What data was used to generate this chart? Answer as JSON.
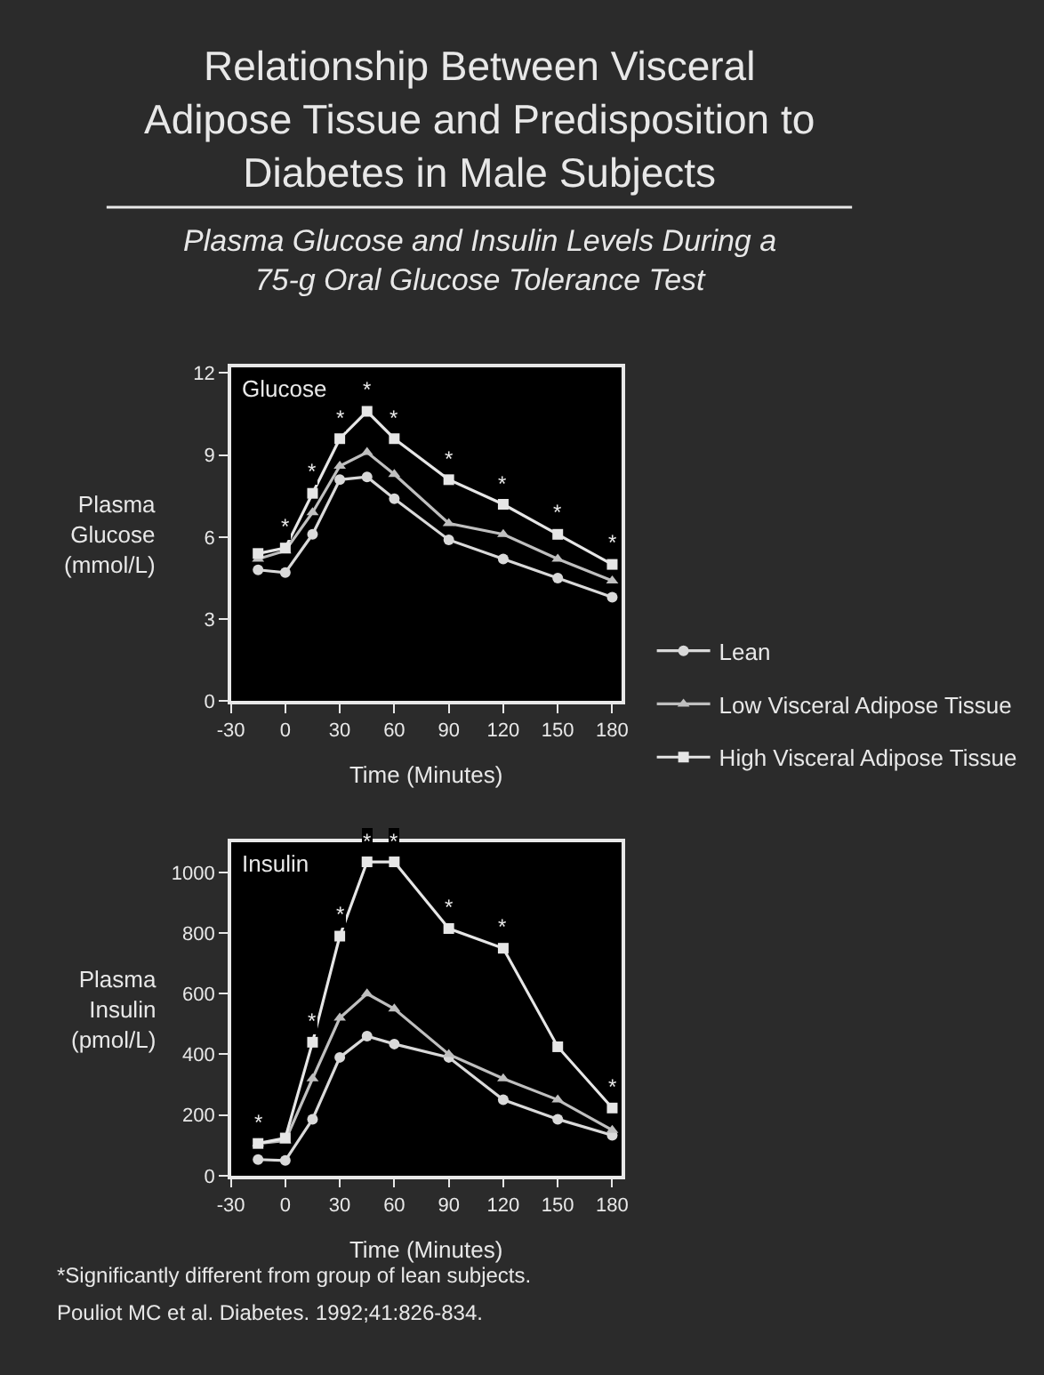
{
  "chart_data": [
    {
      "type": "line",
      "title": "Relationship Between Visceral Adipose Tissue and Predisposition to Diabetes in Male Subjects",
      "subtitle": "Plasma Glucose and Insulin Levels During a 75-g Oral Glucose Tolerance Test",
      "xlabel": "Time (Minutes)",
      "ylabel": "Plasma Glucose (mmol/L)",
      "x": [
        -15,
        0,
        15,
        30,
        45,
        60,
        90,
        120,
        150,
        180
      ],
      "xlim": [
        -30,
        185
      ],
      "xticks": [
        -30,
        0,
        30,
        60,
        90,
        120,
        150,
        180
      ],
      "ylim": [
        0,
        12.2
      ],
      "yticks": [
        0,
        3,
        6,
        9,
        12
      ],
      "grid": false,
      "legend": "right",
      "line_style": "solid",
      "series": [
        {
          "name": "Lean",
          "color": "#d9d9d9",
          "marker": "circle",
          "values": [
            4.8,
            4.7,
            6.1,
            8.1,
            8.2,
            7.4,
            5.9,
            5.2,
            4.5,
            3.8
          ]
        },
        {
          "name": "Low Visceral Adipose Tissue",
          "color": "#bfbfbf",
          "marker": "triangle",
          "values": [
            5.2,
            5.5,
            6.9,
            8.6,
            9.1,
            8.3,
            6.5,
            6.1,
            5.2,
            4.4
          ]
        },
        {
          "name": "High Visceral Adipose Tissue",
          "color": "#e6e6e6",
          "marker": "square",
          "values": [
            5.4,
            5.6,
            7.6,
            9.6,
            10.6,
            9.6,
            8.1,
            7.2,
            6.1,
            5.0
          ]
        }
      ],
      "annotations": [
        "Glucose",
        {
          "text": "*",
          "x": 0,
          "y": 5.6
        },
        {
          "text": "*",
          "x": 15,
          "y": 7.6
        },
        {
          "text": "*",
          "x": 30,
          "y": 9.6
        },
        {
          "text": "*",
          "x": 45,
          "y": 10.6
        },
        {
          "text": "*",
          "x": 60,
          "y": 9.6
        },
        {
          "text": "*",
          "x": 90,
          "y": 8.1
        },
        {
          "text": "*",
          "x": 120,
          "y": 7.2
        },
        {
          "text": "*",
          "x": 150,
          "y": 6.1
        },
        {
          "text": "*",
          "x": 180,
          "y": 5.0
        }
      ]
    },
    {
      "type": "line",
      "xlabel": "Time (Minutes)",
      "ylabel": "Plasma Insulin (pmol/L)",
      "x": [
        -15,
        0,
        15,
        30,
        45,
        60,
        90,
        120,
        150,
        180
      ],
      "xlim": [
        -30,
        185
      ],
      "xticks": [
        -30,
        0,
        30,
        60,
        90,
        120,
        150,
        180
      ],
      "ylim": [
        0,
        1100
      ],
      "yticks": [
        0,
        200,
        400,
        600,
        800,
        1000
      ],
      "grid": false,
      "line_style": "solid",
      "series": [
        {
          "color": "#d9d9d9",
          "marker": "circle",
          "values": [
            53,
            50,
            186,
            390,
            460,
            434,
            390,
            250,
            186,
            133
          ]
        },
        {
          "color": "#bfbfbf",
          "marker": "triangle",
          "values": [
            106,
            115,
            320,
            520,
            600,
            550,
            400,
            320,
            250,
            150
          ]
        },
        {
          "color": "#e6e6e6",
          "marker": "square",
          "values": [
            106,
            124,
            440,
            790,
            1035,
            1035,
            815,
            750,
            425,
            223
          ]
        }
      ],
      "annotations": [
        "Insulin",
        {
          "text": "*",
          "x": -15,
          "y": 106
        },
        {
          "text": "*",
          "x": 15,
          "y": 440
        },
        {
          "text": "*",
          "x": 30,
          "y": 790
        },
        {
          "text": "*",
          "x": 45,
          "y": 1035
        },
        {
          "text": "*",
          "x": 60,
          "y": 1035
        },
        {
          "text": "*",
          "x": 90,
          "y": 815
        },
        {
          "text": "*",
          "x": 120,
          "y": 750
        },
        {
          "text": "*",
          "x": 180,
          "y": 223
        },
        "*Significantly different from group of lean subjects.",
        "Pouliot MC et al. Diabetes. 1992;41:826-834."
      ]
    }
  ]
}
